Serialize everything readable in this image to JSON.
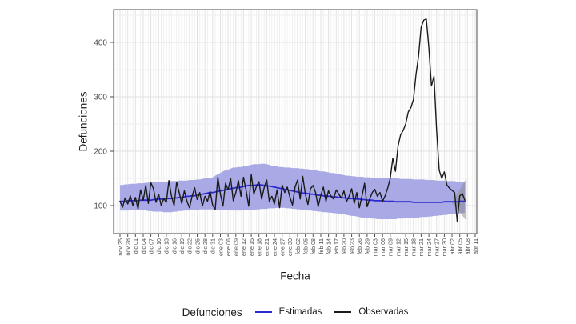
{
  "figure": {
    "y_axis_title": "Defunciones",
    "x_axis_title": "Fecha",
    "legend": {
      "title": "Defunciones",
      "items": [
        {
          "label": "Estimadas",
          "color": "#2A2ACF"
        },
        {
          "label": "Observadas",
          "color": "#1A1A1A"
        }
      ]
    }
  },
  "chart_data": {
    "type": "line",
    "title": "",
    "xlabel": "Fecha",
    "ylabel": "Defunciones",
    "x_start_date": "nov 25",
    "x_end_date": "abr 07",
    "frequency": "daily",
    "grid": true,
    "legend_position": "bottom",
    "y_ticks": [
      100,
      200,
      300,
      400
    ],
    "y_minor_ticks": [
      50,
      150,
      250,
      350,
      450
    ],
    "ylim_shown": [
      48,
      460
    ],
    "x_tick_labels": [
      "nov 25",
      "nov 28",
      "dic 01",
      "dic 04",
      "dic 07",
      "dic 10",
      "dic 13",
      "dic 16",
      "dic 19",
      "dic 22",
      "dic 25",
      "dic 28",
      "dic 31",
      "ene 03",
      "ene 06",
      "ene 09",
      "ene 12",
      "ene 15",
      "ene 18",
      "ene 21",
      "ene 24",
      "ene 27",
      "ene 30",
      "feb 02",
      "feb 05",
      "feb 08",
      "feb 11",
      "feb 14",
      "feb 17",
      "feb 20",
      "feb 23",
      "feb 26",
      "feb 29",
      "mar 03",
      "mar 06",
      "mar 09",
      "mar 12",
      "mar 15",
      "mar 18",
      "mar 21",
      "mar 24",
      "mar 27",
      "mar 30",
      "abr 02",
      "abr 05",
      "abr 08",
      "abr 11"
    ],
    "series": [
      {
        "name": "Estimadas",
        "type": "line",
        "color": "#2A2ACF",
        "values": [
          108,
          108,
          108,
          109,
          109,
          109,
          109,
          109,
          110,
          110,
          110,
          110,
          110,
          111,
          111,
          112,
          112,
          112,
          113,
          113,
          113,
          114,
          114,
          115,
          115,
          116,
          117,
          117,
          118,
          118,
          119,
          120,
          121,
          122,
          123,
          124,
          124,
          125,
          126,
          127,
          128,
          129,
          130,
          131,
          132,
          133,
          133,
          134,
          135,
          136,
          137,
          137,
          137,
          138,
          138,
          138,
          137,
          136,
          136,
          135,
          134,
          133,
          132,
          131,
          130,
          129,
          128,
          127,
          126,
          125,
          124,
          123,
          123,
          122,
          121,
          121,
          120,
          119,
          119,
          118,
          118,
          117,
          117,
          116,
          116,
          115,
          115,
          114,
          114,
          113,
          113,
          113,
          112,
          112,
          111,
          111,
          110,
          110,
          110,
          109,
          109,
          109,
          109,
          108,
          108,
          108,
          108,
          107,
          107,
          107,
          107,
          107,
          107,
          107,
          106,
          106,
          106,
          106,
          106,
          106,
          106,
          106,
          106,
          106,
          106,
          106,
          107,
          107,
          107,
          107,
          107,
          107,
          108,
          108,
          108
        ]
      },
      {
        "name": "Observadas",
        "type": "line",
        "color": "#1A1A1A",
        "values": [
          108,
          97,
          114,
          103,
          118,
          100,
          115,
          94,
          129,
          110,
          137,
          104,
          142,
          131,
          106,
          121,
          100,
          113,
          106,
          146,
          118,
          100,
          143,
          124,
          104,
          127,
          108,
          96,
          117,
          133,
          111,
          124,
          99,
          117,
          108,
          126,
          101,
          93,
          152,
          121,
          99,
          141,
          129,
          150,
          109,
          124,
          146,
          117,
          152,
          127,
          99,
          157,
          121,
          135,
          144,
          112,
          133,
          147,
          108,
          117,
          103,
          129,
          96,
          138,
          124,
          134,
          116,
          101,
          134,
          147,
          112,
          154,
          121,
          102,
          131,
          137,
          124,
          98,
          119,
          134,
          108,
          127,
          117,
          112,
          129,
          121,
          114,
          127,
          107,
          117,
          131,
          104,
          124,
          96,
          117,
          141,
          98,
          112,
          124,
          130,
          117,
          124,
          108,
          118,
          132,
          150,
          187,
          163,
          209,
          230,
          238,
          250,
          272,
          280,
          295,
          341,
          375,
          428,
          441,
          443,
          390,
          320,
          338,
          240,
          165,
          150,
          162,
          138,
          132,
          128,
          124,
          71,
          118,
          122,
          110
        ]
      },
      {
        "name": "Intervalo de estimacion (banda)",
        "type": "band",
        "color": "#A9A9E6",
        "upper": [
          138,
          138,
          139,
          139,
          140,
          140,
          140,
          141,
          141,
          141,
          142,
          142,
          142,
          143,
          143,
          143,
          144,
          144,
          144,
          145,
          145,
          145,
          145,
          146,
          146,
          146,
          146,
          147,
          147,
          147,
          148,
          148,
          149,
          150,
          150,
          151,
          152,
          155,
          158,
          160,
          163,
          165,
          166,
          168,
          170,
          170,
          171,
          171,
          172,
          173,
          174,
          175,
          176,
          176,
          176,
          177,
          177,
          176,
          175,
          173,
          172,
          172,
          171,
          171,
          170,
          170,
          170,
          169,
          169,
          169,
          168,
          168,
          167,
          167,
          166,
          166,
          165,
          164,
          163,
          163,
          162,
          161,
          160,
          160,
          159,
          158,
          157,
          156,
          155,
          155,
          154,
          154,
          153,
          153,
          153,
          152,
          152,
          152,
          151,
          151,
          151,
          151,
          150,
          150,
          150,
          150,
          150,
          150,
          150,
          149,
          149,
          149,
          149,
          149,
          148,
          148,
          148,
          148,
          148,
          147,
          147,
          147,
          147,
          146,
          146,
          146,
          146,
          145,
          145,
          145,
          145,
          144,
          144,
          144,
          144
        ],
        "lower": [
          91,
          91,
          91,
          91,
          91,
          92,
          92,
          92,
          92,
          92,
          91,
          90,
          90,
          89,
          89,
          89,
          89,
          88,
          88,
          88,
          88,
          89,
          89,
          90,
          90,
          91,
          91,
          91,
          92,
          92,
          92,
          93,
          93,
          93,
          93,
          93,
          93,
          92,
          92,
          92,
          92,
          92,
          92,
          91,
          91,
          91,
          91,
          91,
          91,
          92,
          92,
          92,
          92,
          93,
          93,
          94,
          94,
          94,
          95,
          95,
          95,
          96,
          96,
          96,
          96,
          95,
          95,
          94,
          94,
          93,
          93,
          92,
          92,
          91,
          91,
          90,
          90,
          89,
          89,
          88,
          88,
          87,
          87,
          86,
          86,
          85,
          84,
          84,
          83,
          82,
          81,
          81,
          80,
          79,
          78,
          78,
          77,
          77,
          76,
          76,
          75,
          75,
          75,
          75,
          75,
          75,
          75,
          75,
          76,
          76,
          76,
          77,
          77,
          77,
          78,
          78,
          78,
          79,
          79,
          79,
          80,
          80,
          81,
          81,
          82,
          82,
          83,
          83,
          84,
          84,
          85,
          85,
          86,
          86,
          87
        ]
      },
      {
        "name": "incertidumbre-final",
        "type": "wedge",
        "color": "#8A8A8A",
        "from_day": 129,
        "to_day": 134.6,
        "apex_value": 105,
        "end_upper": 150,
        "end_lower": 72
      }
    ],
    "colors": {
      "band": "#A9A9E6",
      "estimated": "#2A2ACF",
      "observed": "#1A1A1A",
      "grid_major": "#E2E2E2",
      "grid_minor": "#EFEFEF",
      "panel_border": "#4D4D4D",
      "axis_text": "#4D4D4D",
      "background": "#FFFFFF",
      "uncertainty_wedge": "#8A8A8A"
    }
  }
}
